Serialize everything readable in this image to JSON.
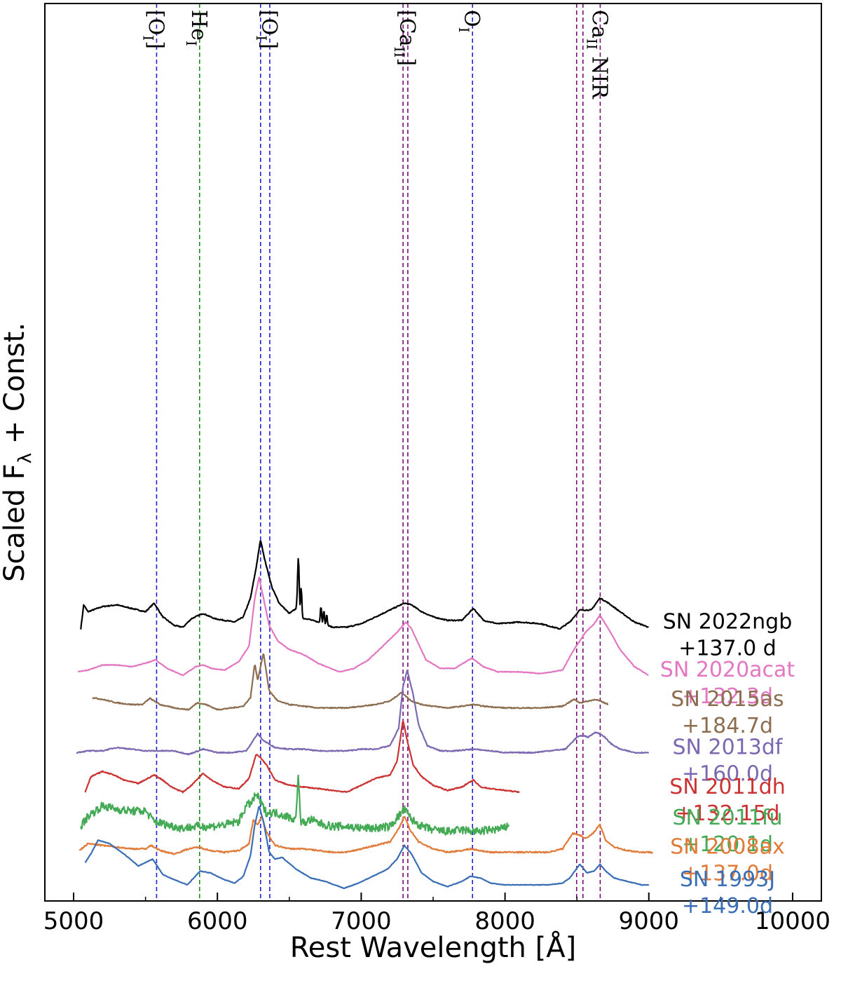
{
  "chart_data": {
    "type": "line",
    "title": "",
    "xlabel": "Rest Wavelength [Å]",
    "ylabel": "Scaled F",
    "ylabel_sub": "λ",
    "ylabel_suffix": " + Const.",
    "xlim": [
      4800,
      10200
    ],
    "xticks": [
      5000,
      6000,
      7000,
      8000,
      9000,
      10000
    ],
    "yticks_shown": false,
    "line_markers": [
      {
        "label": "[O",
        "sub": "I",
        "suffix": "]",
        "wavelengths": [
          5577
        ],
        "color": "#1f1fd6"
      },
      {
        "label": "He",
        "sub": "I",
        "suffix": "",
        "wavelengths": [
          5876
        ],
        "color": "#1a8a1a"
      },
      {
        "label": "[O",
        "sub": "I",
        "suffix": "]",
        "wavelengths": [
          6300,
          6364
        ],
        "color": "#1f1fd6"
      },
      {
        "label": "[Ca",
        "sub": "II",
        "suffix": "]",
        "wavelengths": [
          7291,
          7324
        ],
        "color": "#7a0a7a"
      },
      {
        "label": "O",
        "sub": "I",
        "suffix": "",
        "wavelengths": [
          7774
        ],
        "color": "#1f1fd6"
      },
      {
        "label": "Ca",
        "sub": "II",
        "suffix": " NIR",
        "wavelengths": [
          8498,
          8542,
          8662
        ],
        "color": "#7a0a7a"
      }
    ],
    "series": [
      {
        "name": "SN 2022ngb",
        "phase": "+137.0 d",
        "color": "#000000",
        "offset": 7.0,
        "noise": 0.015,
        "x": [
          5050,
          5070,
          5100,
          5200,
          5300,
          5400,
          5450,
          5500,
          5560,
          5620,
          5700,
          5760,
          5820,
          5900,
          5980,
          6050,
          6120,
          6180,
          6230,
          6270,
          6300,
          6330,
          6380,
          6430,
          6500,
          6550,
          6580,
          6620,
          6700,
          6800,
          6900,
          7000,
          7100,
          7200,
          7300,
          7350,
          7420,
          7500,
          7600,
          7700,
          7780,
          7850,
          7950,
          8100,
          8250,
          8380,
          8450,
          8520,
          8600,
          8660,
          8720,
          8800,
          8900,
          9000
        ],
        "y": [
          0.0,
          0.7,
          0.5,
          0.65,
          0.7,
          0.6,
          0.55,
          0.5,
          0.75,
          0.35,
          0.1,
          0.05,
          0.3,
          0.45,
          0.3,
          0.25,
          0.2,
          0.35,
          0.9,
          1.8,
          2.6,
          2.0,
          1.2,
          0.75,
          0.45,
          0.6,
          0.3,
          0.3,
          0.2,
          0.05,
          0.05,
          0.15,
          0.35,
          0.55,
          0.75,
          0.7,
          0.5,
          0.35,
          0.25,
          0.25,
          0.6,
          0.25,
          0.15,
          0.2,
          0.15,
          0.0,
          0.2,
          0.55,
          0.55,
          0.9,
          0.75,
          0.5,
          0.2,
          0.05
        ],
        "spikes": [
          [
            6563,
            1.6,
            8
          ],
          [
            6583,
            0.9,
            6
          ],
          [
            6720,
            0.5,
            6
          ],
          [
            6740,
            0.4,
            6
          ],
          [
            6760,
            0.3,
            6
          ]
        ]
      },
      {
        "name": "SN 2020acat",
        "phase": "+132.3d",
        "color": "#e377c2",
        "offset": 5.7,
        "noise": 0.01,
        "x": [
          5030,
          5100,
          5200,
          5300,
          5400,
          5500,
          5570,
          5650,
          5760,
          5850,
          5900,
          5960,
          6050,
          6150,
          6220,
          6260,
          6290,
          6320,
          6360,
          6420,
          6500,
          6600,
          6700,
          6850,
          6950,
          7050,
          7150,
          7250,
          7310,
          7350,
          7400,
          7450,
          7550,
          7650,
          7770,
          7850,
          7950,
          8100,
          8250,
          8400,
          8480,
          8560,
          8620,
          8660,
          8720,
          8800,
          8900,
          9000
        ],
        "y": [
          0.05,
          0.1,
          0.25,
          0.25,
          0.2,
          0.3,
          0.4,
          0.15,
          -0.05,
          0.2,
          0.25,
          0.15,
          0.1,
          0.35,
          0.8,
          2.2,
          2.8,
          2.2,
          1.4,
          0.95,
          0.7,
          0.55,
          0.3,
          0.05,
          0.15,
          0.4,
          0.8,
          1.2,
          1.5,
          1.3,
          0.85,
          0.4,
          0.15,
          0.15,
          0.45,
          0.2,
          0.05,
          0.05,
          0.0,
          0.1,
          0.7,
          1.2,
          1.45,
          1.7,
          1.3,
          0.7,
          0.2,
          -0.05
        ],
        "spikes": []
      },
      {
        "name": "SN 2015as",
        "phase": "+184.7d",
        "color": "#8c6d4f",
        "offset": 4.7,
        "noise": 0.015,
        "x": [
          5130,
          5200,
          5300,
          5400,
          5480,
          5530,
          5600,
          5700,
          5800,
          5860,
          5920,
          6000,
          6100,
          6180,
          6230,
          6260,
          6280,
          6300,
          6320,
          6360,
          6420,
          6500,
          6600,
          6700,
          6800,
          6900,
          7000,
          7100,
          7200,
          7280,
          7350,
          7420,
          7500,
          7600,
          7700,
          7780,
          7850,
          8000,
          8100,
          8250,
          8400,
          8480,
          8520,
          8580,
          8630,
          8660,
          8720
        ],
        "y": [
          0.3,
          0.25,
          0.15,
          0.1,
          0.1,
          0.28,
          0.1,
          0.0,
          -0.05,
          0.15,
          0.1,
          -0.05,
          0.0,
          0.05,
          0.3,
          1.3,
          0.8,
          1.2,
          1.6,
          0.5,
          0.2,
          0.1,
          0.05,
          0.0,
          0.0,
          0.0,
          0.05,
          0.1,
          0.2,
          0.45,
          0.2,
          0.1,
          0.05,
          0.0,
          0.05,
          0.1,
          0.05,
          0.0,
          0.0,
          0.0,
          0.05,
          0.25,
          0.15,
          0.2,
          0.25,
          0.2,
          0.1
        ],
        "spikes": []
      },
      {
        "name": "SN 2013df",
        "phase": "+160.0d",
        "color": "#7b68b0",
        "offset": 3.4,
        "noise": 0.015,
        "x": [
          5020,
          5100,
          5200,
          5300,
          5400,
          5500,
          5600,
          5700,
          5800,
          5900,
          6000,
          6100,
          6200,
          6240,
          6280,
          6320,
          6400,
          6500,
          6600,
          6700,
          6800,
          6900,
          7000,
          7100,
          7200,
          7260,
          7290,
          7320,
          7360,
          7400,
          7460,
          7550,
          7650,
          7780,
          7900,
          8000,
          8100,
          8200,
          8300,
          8420,
          8500,
          8540,
          8580,
          8630,
          8680,
          8740,
          8800,
          8900,
          9000
        ],
        "y": [
          0.0,
          0.05,
          0.05,
          0.15,
          0.1,
          0.05,
          0.05,
          0.05,
          -0.05,
          0.1,
          0.0,
          0.0,
          0.05,
          0.3,
          0.55,
          0.35,
          0.15,
          0.1,
          0.1,
          0.05,
          0.05,
          0.05,
          0.1,
          0.1,
          0.2,
          0.7,
          1.9,
          2.4,
          1.7,
          0.8,
          0.2,
          0.05,
          0.05,
          0.1,
          0.05,
          0.0,
          0.0,
          0.0,
          0.05,
          0.1,
          0.45,
          0.5,
          0.45,
          0.6,
          0.5,
          0.25,
          0.1,
          0.0,
          0.0
        ],
        "spikes": []
      },
      {
        "name": "SN 2011dh",
        "phase": "+132.15d",
        "color": "#cc3333",
        "offset": 2.25,
        "noise": 0.015,
        "x": [
          5080,
          5120,
          5200,
          5280,
          5350,
          5450,
          5560,
          5620,
          5680,
          5760,
          5820,
          5900,
          5960,
          6050,
          6150,
          6220,
          6270,
          6300,
          6340,
          6400,
          6500,
          6600,
          6700,
          6800,
          6900,
          7000,
          7100,
          7200,
          7250,
          7290,
          7320,
          7360,
          7420,
          7500,
          7600,
          7700,
          7780,
          7830,
          7900,
          8000,
          8100
        ],
        "y": [
          0.0,
          0.45,
          0.6,
          0.5,
          0.35,
          0.25,
          0.5,
          0.35,
          0.15,
          0.0,
          0.2,
          0.55,
          0.35,
          0.15,
          0.1,
          0.4,
          1.1,
          1.0,
          0.8,
          0.35,
          0.2,
          0.15,
          0.1,
          0.05,
          0.0,
          0.2,
          0.4,
          0.5,
          0.9,
          2.1,
          1.5,
          0.8,
          0.45,
          0.2,
          0.05,
          0.15,
          0.35,
          0.15,
          0.1,
          0.05,
          0.0
        ],
        "spikes": []
      },
      {
        "name": "SN 2011fu",
        "phase": "+120.1d",
        "color": "#44aa55",
        "offset": 1.25,
        "noise": 0.12,
        "x": [
          5050,
          5100,
          5200,
          5300,
          5400,
          5500,
          5560,
          5650,
          5750,
          5850,
          5950,
          6050,
          6150,
          6200,
          6240,
          6270,
          6300,
          6340,
          6400,
          6480,
          6540,
          6600,
          6650,
          6700,
          6800,
          6900,
          7000,
          7100,
          7200,
          7270,
          7300,
          7350,
          7420,
          7500,
          7600,
          7700,
          7800,
          7900,
          8000,
          8030
        ],
        "y": [
          0.0,
          0.3,
          0.6,
          0.5,
          0.45,
          0.45,
          0.15,
          0.05,
          -0.05,
          0.0,
          0.0,
          0.05,
          0.15,
          0.6,
          0.7,
          0.95,
          0.7,
          0.4,
          0.4,
          0.3,
          0.2,
          0.1,
          0.2,
          0.1,
          0.0,
          0.0,
          -0.05,
          -0.05,
          0.0,
          0.35,
          0.5,
          0.2,
          0.0,
          -0.1,
          -0.15,
          -0.1,
          -0.15,
          -0.1,
          -0.05,
          0.1
        ],
        "spikes": [
          [
            6562,
            1.3,
            10
          ]
        ]
      },
      {
        "name": "SN 2008ax",
        "phase": "+137.0d",
        "color": "#e07b39",
        "offset": 0.55,
        "noise": 0.02,
        "x": [
          5040,
          5100,
          5200,
          5300,
          5400,
          5500,
          5540,
          5600,
          5700,
          5800,
          5870,
          5950,
          6050,
          6150,
          6220,
          6250,
          6280,
          6310,
          6340,
          6400,
          6500,
          6600,
          6700,
          6800,
          6900,
          7000,
          7100,
          7200,
          7270,
          7300,
          7340,
          7400,
          7500,
          7600,
          7700,
          7760,
          7820,
          7900,
          8000,
          8100,
          8200,
          8300,
          8400,
          8470,
          8520,
          8560,
          8600,
          8660,
          8700,
          8760,
          8850,
          8950,
          9030
        ],
        "y": [
          0.0,
          0.2,
          0.15,
          0.1,
          0.05,
          0.05,
          0.15,
          0.0,
          -0.1,
          0.05,
          0.1,
          0.0,
          -0.05,
          0.0,
          0.2,
          0.9,
          0.75,
          1.0,
          0.55,
          0.15,
          0.05,
          0.05,
          0.0,
          -0.05,
          -0.05,
          0.05,
          0.15,
          0.25,
          0.7,
          1.0,
          0.6,
          0.25,
          0.05,
          -0.05,
          0.0,
          0.05,
          0.0,
          -0.05,
          -0.05,
          -0.05,
          -0.05,
          -0.05,
          0.05,
          0.5,
          0.45,
          0.35,
          0.45,
          0.75,
          0.3,
          0.1,
          0.0,
          -0.05,
          -0.05
        ],
        "spikes": []
      },
      {
        "name": "SN 1993J",
        "phase": "+149.0d",
        "color": "#3a6fb5",
        "offset": -0.4,
        "noise": 0.008,
        "x": [
          5080,
          5120,
          5170,
          5250,
          5350,
          5450,
          5550,
          5620,
          5700,
          5790,
          5880,
          5950,
          6050,
          6120,
          6180,
          6230,
          6260,
          6290,
          6320,
          6360,
          6400,
          6450,
          6550,
          6650,
          6750,
          6880,
          6980,
          7080,
          7180,
          7250,
          7300,
          7350,
          7420,
          7500,
          7600,
          7700,
          7760,
          7830,
          7900,
          8000,
          8100,
          8200,
          8300,
          8400,
          8450,
          8520,
          8570,
          8620,
          8660,
          8700,
          8760,
          8850,
          8950,
          9000
        ],
        "y": [
          0.6,
          0.85,
          1.25,
          1.15,
          0.85,
          0.5,
          0.7,
          0.25,
          0.1,
          -0.05,
          0.35,
          0.3,
          0.1,
          0.0,
          0.2,
          0.8,
          1.7,
          2.25,
          1.8,
          0.9,
          0.7,
          0.75,
          0.4,
          0.15,
          0.05,
          -0.15,
          0.0,
          0.2,
          0.4,
          0.7,
          1.1,
          0.85,
          0.3,
          0.05,
          -0.1,
          0.05,
          0.2,
          0.15,
          0.0,
          -0.05,
          -0.05,
          -0.05,
          -0.05,
          0.0,
          0.15,
          0.55,
          0.3,
          0.35,
          0.55,
          0.35,
          0.15,
          0.05,
          -0.05,
          -0.05
        ],
        "spikes": []
      }
    ]
  }
}
